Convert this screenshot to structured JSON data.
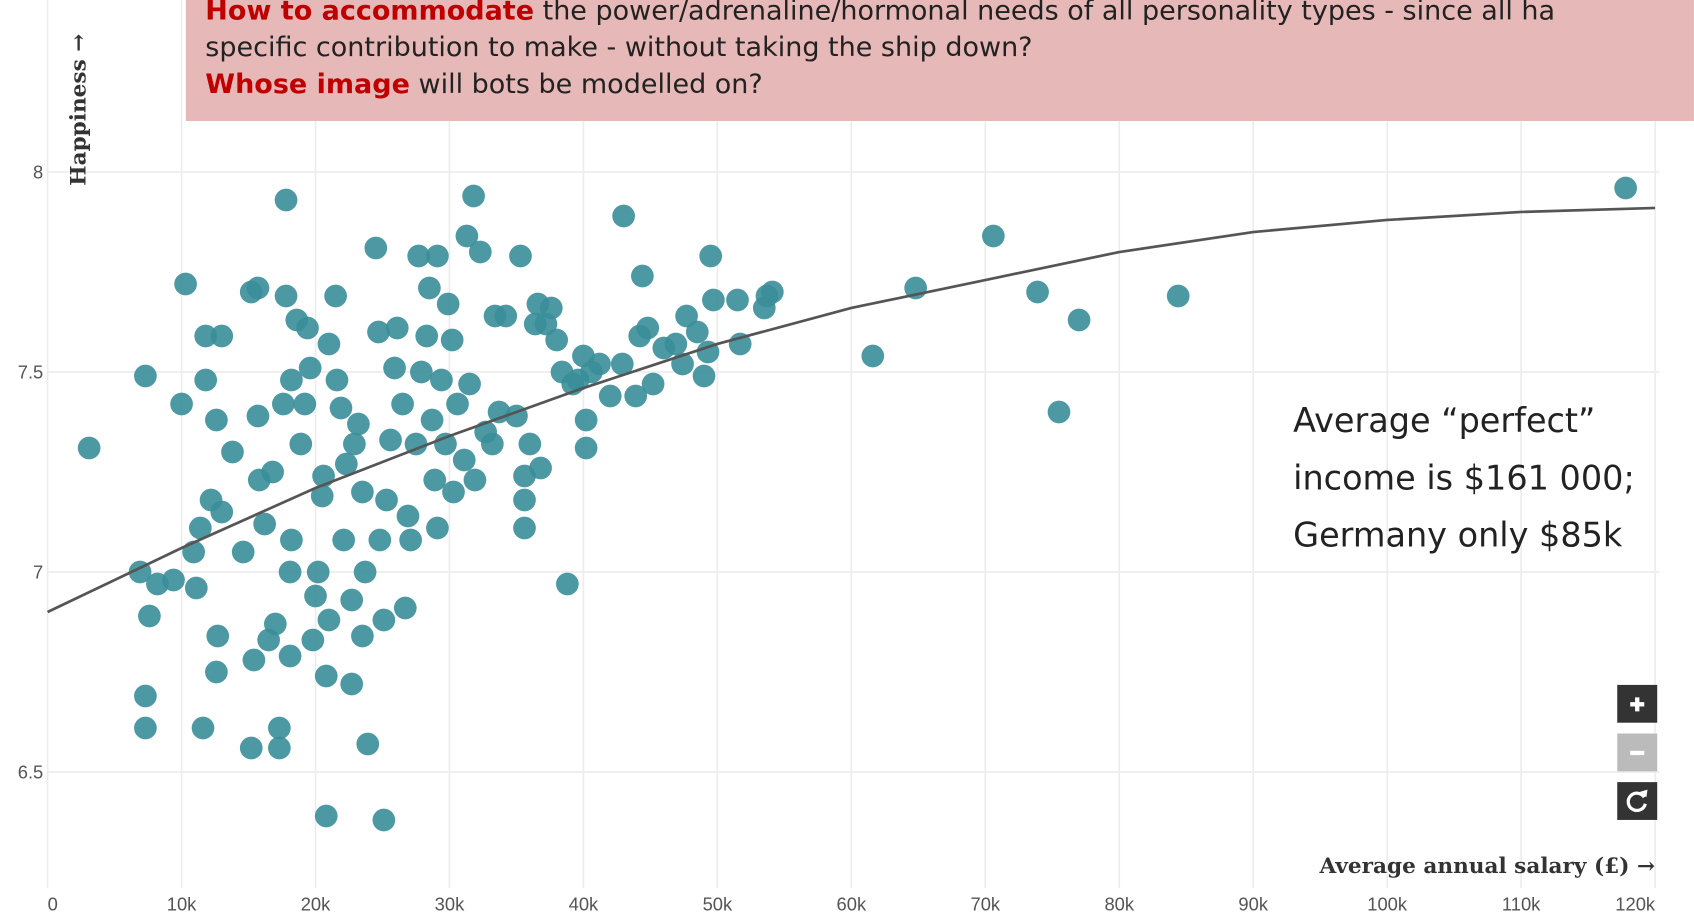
{
  "chart_data": {
    "type": "scatter",
    "x_label": "Average annual salary (£) →",
    "y_label": "Happiness →",
    "xlim": [
      -3550,
      122900
    ],
    "ylim": [
      6.21,
      8.43
    ],
    "xticks": [
      0,
      {
        "value": 10000,
        "label": "10k"
      },
      {
        "value": 20000,
        "label": "20k"
      },
      {
        "value": 30000,
        "label": "30k"
      },
      {
        "value": 40000,
        "label": "40k"
      },
      {
        "value": 50000,
        "label": "50k"
      },
      {
        "value": 60000,
        "label": "60k"
      },
      {
        "value": 70000,
        "label": "70k"
      },
      {
        "value": 80000,
        "label": "80k"
      },
      {
        "value": 90000,
        "label": "90k"
      },
      {
        "value": 100000,
        "label": "100k"
      },
      {
        "value": 110000,
        "label": "110k"
      },
      {
        "value": 120000,
        "label": "120k"
      }
    ],
    "yticks": [
      6.5,
      7,
      7.5,
      8
    ],
    "grid": true,
    "color": "#3a8e99",
    "x": [
      3100,
      6900,
      7300,
      7600,
      7300,
      7300,
      8200,
      9400,
      10000,
      10300,
      11100,
      10900,
      11400,
      11600,
      11800,
      11800,
      12200,
      12600,
      12700,
      13000,
      12600,
      13000,
      13800,
      14600,
      15200,
      15200,
      15700,
      15400,
      15700,
      15800,
      16200,
      16500,
      16800,
      17000,
      17300,
      17300,
      17600,
      17800,
      17800,
      18100,
      18100,
      18200,
      18200,
      18600,
      18900,
      19200,
      19400,
      19600,
      19800,
      20000,
      20200,
      20500,
      20600,
      20800,
      20800,
      21000,
      21000,
      21500,
      21600,
      21900,
      22100,
      22300,
      22700,
      22700,
      22900,
      23200,
      23500,
      23500,
      23700,
      23900,
      24500,
      24700,
      24800,
      25100,
      25100,
      25300,
      25600,
      25900,
      26100,
      26500,
      26700,
      26900,
      27100,
      27500,
      27700,
      27900,
      28300,
      28500,
      28700,
      28900,
      29100,
      29100,
      29400,
      29700,
      29900,
      30200,
      30300,
      30600,
      31100,
      31300,
      31500,
      31800,
      31900,
      32300,
      32700,
      33200,
      33400,
      33700,
      34200,
      35000,
      35300,
      35600,
      35600,
      35600,
      36000,
      36400,
      36600,
      36800,
      37200,
      37600,
      38000,
      38400,
      38800,
      39200,
      39600,
      40000,
      40200,
      40200,
      40600,
      41200,
      42000,
      42900,
      43000,
      43900,
      44200,
      44400,
      44800,
      45200,
      46000,
      46900,
      47700,
      47400,
      48500,
      49000,
      49300,
      49500,
      49700,
      51700,
      51500,
      53500,
      53700,
      54100,
      61600,
      64800,
      70600,
      73900,
      75500,
      77000,
      84400,
      117800
    ],
    "values": [
      7.31,
      7.0,
      7.49,
      6.89,
      6.69,
      6.61,
      6.97,
      6.98,
      7.42,
      7.72,
      6.96,
      7.05,
      7.11,
      6.61,
      7.48,
      7.59,
      7.18,
      6.75,
      6.84,
      7.59,
      7.38,
      7.15,
      7.3,
      7.05,
      6.56,
      7.7,
      7.71,
      6.78,
      7.39,
      7.23,
      7.12,
      6.83,
      7.25,
      6.87,
      6.61,
      6.56,
      7.42,
      7.93,
      7.69,
      6.79,
      7.0,
      7.08,
      7.48,
      7.63,
      7.32,
      7.42,
      7.61,
      7.51,
      6.83,
      6.94,
      7.0,
      7.19,
      7.24,
      6.39,
      6.74,
      6.88,
      7.57,
      7.69,
      7.48,
      7.41,
      7.08,
      7.27,
      6.72,
      6.93,
      7.32,
      7.37,
      7.2,
      6.84,
      7.0,
      6.57,
      7.81,
      7.6,
      7.08,
      6.88,
      6.38,
      7.18,
      7.33,
      7.51,
      7.61,
      7.42,
      6.91,
      7.14,
      7.08,
      7.32,
      7.79,
      7.5,
      7.59,
      7.71,
      7.38,
      7.23,
      7.11,
      7.79,
      7.48,
      7.32,
      7.67,
      7.58,
      7.2,
      7.42,
      7.28,
      7.84,
      7.47,
      7.94,
      7.23,
      7.8,
      7.35,
      7.32,
      7.64,
      7.4,
      7.64,
      7.39,
      7.79,
      7.11,
      7.18,
      7.24,
      7.32,
      7.62,
      7.67,
      7.26,
      7.62,
      7.66,
      7.58,
      7.5,
      6.97,
      7.47,
      7.48,
      7.54,
      7.38,
      7.31,
      7.5,
      7.52,
      7.44,
      7.52,
      7.89,
      7.44,
      7.59,
      7.74,
      7.61,
      7.47,
      7.56,
      7.57,
      7.64,
      7.52,
      7.6,
      7.49,
      7.55,
      7.79,
      7.68,
      7.57,
      7.68,
      7.66,
      7.69,
      7.7,
      7.54,
      7.71,
      7.84,
      7.7,
      7.4,
      7.63,
      7.69,
      7.96
    ],
    "trend": {
      "color": "#555555",
      "x": [
        0,
        10000,
        20000,
        30000,
        40000,
        50000,
        60000,
        70000,
        80000,
        90000,
        100000,
        110000,
        120000
      ],
      "values": [
        6.9,
        7.06,
        7.21,
        7.34,
        7.46,
        7.57,
        7.66,
        7.73,
        7.8,
        7.85,
        7.88,
        7.9,
        7.91
      ]
    },
    "notes": [
      {
        "highlight": "How to accommodate",
        "text": " the power/adrenaline/hormonal needs of all personality types - since all ha"
      },
      {
        "text": "specific contribution to make - without taking the ship down?"
      },
      {
        "highlight": "Whose image",
        "text": " will bots be modelled on?"
      }
    ],
    "annotation": [
      "Average “perfect”",
      "income is $161 000;",
      "Germany only $85k"
    ]
  }
}
